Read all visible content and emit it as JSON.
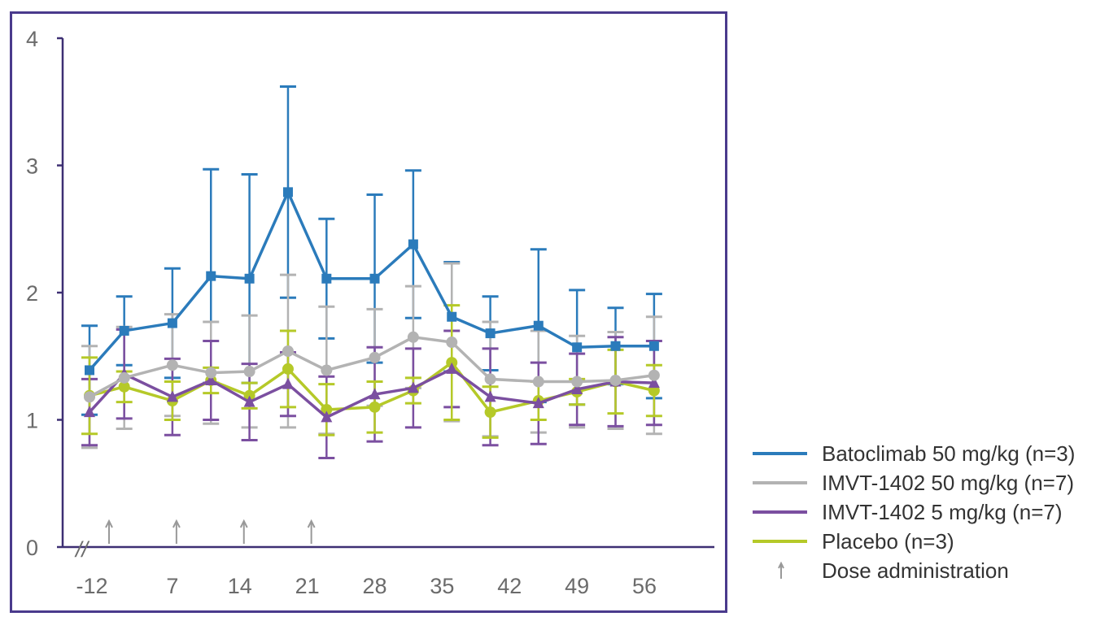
{
  "chart_data": {
    "type": "line",
    "title": "",
    "xlabel": "",
    "ylabel": "",
    "ylim": [
      0,
      4
    ],
    "yticks": [
      "0",
      "1",
      "2",
      "3",
      "4"
    ],
    "xticks": [
      {
        "value": -12,
        "label": "-12"
      },
      {
        "value": 7,
        "label": "7"
      },
      {
        "value": 14,
        "label": "14"
      },
      {
        "value": 21,
        "label": "21"
      },
      {
        "value": 28,
        "label": "28"
      },
      {
        "value": 35,
        "label": "35"
      },
      {
        "value": 42,
        "label": "42"
      },
      {
        "value": 49,
        "label": "49"
      },
      {
        "value": 56,
        "label": "56"
      }
    ],
    "x": [
      -12,
      2,
      7,
      11,
      15,
      19,
      23,
      28,
      32,
      36,
      40,
      45,
      49,
      53,
      57
    ],
    "axis_break": "//",
    "dose_days": [
      0,
      7,
      14,
      21
    ],
    "legend_position": "bottom-right outside",
    "series": [
      {
        "name": "Batoclimab 50 mg/kg (n=3)",
        "color": "#2b7bbb",
        "marker": "square",
        "values": [
          1.39,
          1.7,
          1.76,
          2.13,
          2.11,
          2.79,
          2.11,
          2.11,
          2.38,
          1.81,
          1.68,
          1.74,
          1.57,
          1.58,
          1.58
        ],
        "error": [
          0.35,
          0.27,
          0.43,
          0.84,
          0.82,
          0.83,
          0.47,
          0.66,
          0.58,
          0.43,
          0.29,
          0.6,
          0.45,
          0.3,
          0.41
        ]
      },
      {
        "name": "IMVT-1402 50 mg/kg (n=7)",
        "color": "#b3b3b3",
        "marker": "circle",
        "values": [
          1.18,
          1.33,
          1.43,
          1.37,
          1.38,
          1.54,
          1.39,
          1.49,
          1.65,
          1.61,
          1.32,
          1.3,
          1.3,
          1.31,
          1.35
        ],
        "error": [
          0.4,
          0.4,
          0.4,
          0.4,
          0.44,
          0.6,
          0.5,
          0.38,
          0.4,
          0.62,
          0.45,
          0.4,
          0.36,
          0.38,
          0.46
        ]
      },
      {
        "name": "IMVT-1402 5 mg/kg (n=7)",
        "color": "#7b4fa0",
        "marker": "triangle",
        "values": [
          1.06,
          1.36,
          1.18,
          1.31,
          1.14,
          1.28,
          1.02,
          1.2,
          1.25,
          1.4,
          1.18,
          1.13,
          1.24,
          1.3,
          1.29
        ],
        "error": [
          0.26,
          0.35,
          0.3,
          0.31,
          0.3,
          0.25,
          0.32,
          0.37,
          0.31,
          0.3,
          0.38,
          0.32,
          0.28,
          0.35,
          0.33
        ]
      },
      {
        "name": "Placebo (n=3)",
        "color": "#b5c928",
        "marker": "circle",
        "values": [
          1.19,
          1.26,
          1.15,
          1.31,
          1.19,
          1.4,
          1.08,
          1.1,
          1.23,
          1.45,
          1.06,
          1.15,
          1.22,
          1.3,
          1.23
        ],
        "error": [
          0.3,
          0.12,
          0.15,
          0.1,
          0.1,
          0.3,
          0.2,
          0.2,
          0.1,
          0.45,
          0.2,
          0.15,
          0.1,
          0.25,
          0.2
        ]
      }
    ],
    "dose_legend": "Dose administration"
  }
}
